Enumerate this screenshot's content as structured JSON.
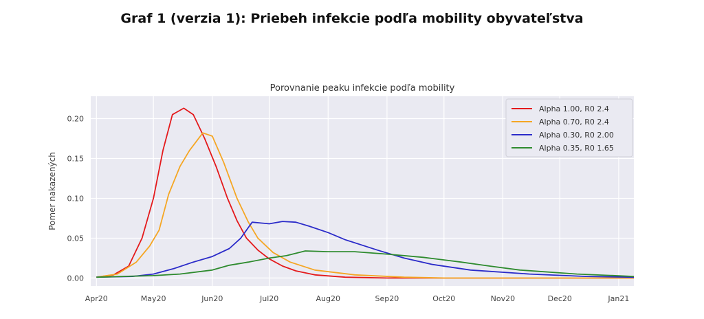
{
  "page": {
    "title": "Graf 1 (verzia 1): Priebeh infekcie podľa mobility obyvateľstva"
  },
  "chart_data": {
    "type": "line",
    "title": "Porovnanie peaku infekcie podľa mobility",
    "xlabel": "",
    "ylabel": "Pomer nakazených",
    "xlim": [
      "2020-03-29",
      "2021-01-09"
    ],
    "ylim": [
      -0.01,
      0.228
    ],
    "grid": true,
    "legend": "top-right",
    "xticks": [
      {
        "date": "2020-04-01",
        "label": "Apr20"
      },
      {
        "date": "2020-05-01",
        "label": "May20"
      },
      {
        "date": "2020-06-01",
        "label": "Jun20"
      },
      {
        "date": "2020-07-01",
        "label": "Jul20"
      },
      {
        "date": "2020-08-01",
        "label": "Aug20"
      },
      {
        "date": "2020-09-01",
        "label": "Sep20"
      },
      {
        "date": "2020-10-01",
        "label": "Oct20"
      },
      {
        "date": "2020-11-01",
        "label": "Nov20"
      },
      {
        "date": "2020-12-01",
        "label": "Dec20"
      },
      {
        "date": "2021-01-01",
        "label": "Jan21"
      }
    ],
    "yticks": [
      {
        "value": 0.0,
        "label": "0.00"
      },
      {
        "value": 0.05,
        "label": "0.05"
      },
      {
        "value": 0.1,
        "label": "0.10"
      },
      {
        "value": 0.15,
        "label": "0.15"
      },
      {
        "value": 0.2,
        "label": "0.20"
      }
    ],
    "series": [
      {
        "name": "Alpha 1.00, R0 2.4",
        "color": "#e41a1c",
        "points": [
          [
            "2020-04-01",
            0.001
          ],
          [
            "2020-04-10",
            0.004
          ],
          [
            "2020-04-18",
            0.015
          ],
          [
            "2020-04-25",
            0.05
          ],
          [
            "2020-05-01",
            0.1
          ],
          [
            "2020-05-06",
            0.16
          ],
          [
            "2020-05-11",
            0.205
          ],
          [
            "2020-05-17",
            0.213
          ],
          [
            "2020-05-22",
            0.205
          ],
          [
            "2020-05-28",
            0.175
          ],
          [
            "2020-06-03",
            0.14
          ],
          [
            "2020-06-09",
            0.1
          ],
          [
            "2020-06-14",
            0.072
          ],
          [
            "2020-06-19",
            0.05
          ],
          [
            "2020-06-25",
            0.035
          ],
          [
            "2020-07-01",
            0.024
          ],
          [
            "2020-07-08",
            0.015
          ],
          [
            "2020-07-15",
            0.009
          ],
          [
            "2020-07-25",
            0.004
          ],
          [
            "2020-08-10",
            0.001
          ],
          [
            "2020-09-01",
            0.0
          ],
          [
            "2021-01-09",
            0.0
          ]
        ]
      },
      {
        "name": "Alpha 0.70, R0 2.4",
        "color": "#f5a623",
        "points": [
          [
            "2020-04-01",
            0.001
          ],
          [
            "2020-04-12",
            0.005
          ],
          [
            "2020-04-22",
            0.02
          ],
          [
            "2020-04-29",
            0.04
          ],
          [
            "2020-05-04",
            0.06
          ],
          [
            "2020-05-09",
            0.105
          ],
          [
            "2020-05-15",
            0.14
          ],
          [
            "2020-05-20",
            0.16
          ],
          [
            "2020-05-27",
            0.182
          ],
          [
            "2020-06-01",
            0.178
          ],
          [
            "2020-06-07",
            0.145
          ],
          [
            "2020-06-14",
            0.1
          ],
          [
            "2020-06-20",
            0.07
          ],
          [
            "2020-06-25",
            0.05
          ],
          [
            "2020-07-03",
            0.032
          ],
          [
            "2020-07-12",
            0.02
          ],
          [
            "2020-07-25",
            0.01
          ],
          [
            "2020-08-15",
            0.004
          ],
          [
            "2020-09-10",
            0.001
          ],
          [
            "2020-10-01",
            0.0
          ],
          [
            "2021-01-09",
            0.0
          ]
        ]
      },
      {
        "name": "Alpha 0.30, R0 2.00",
        "color": "#2b2bc9",
        "points": [
          [
            "2020-04-01",
            0.001
          ],
          [
            "2020-04-20",
            0.002
          ],
          [
            "2020-05-01",
            0.005
          ],
          [
            "2020-05-12",
            0.012
          ],
          [
            "2020-05-22",
            0.02
          ],
          [
            "2020-06-01",
            0.027
          ],
          [
            "2020-06-10",
            0.037
          ],
          [
            "2020-06-16",
            0.05
          ],
          [
            "2020-06-22",
            0.07
          ],
          [
            "2020-07-01",
            0.068
          ],
          [
            "2020-07-08",
            0.071
          ],
          [
            "2020-07-15",
            0.07
          ],
          [
            "2020-07-22",
            0.065
          ],
          [
            "2020-08-01",
            0.057
          ],
          [
            "2020-08-10",
            0.048
          ],
          [
            "2020-08-27",
            0.035
          ],
          [
            "2020-09-10",
            0.025
          ],
          [
            "2020-09-25",
            0.017
          ],
          [
            "2020-10-15",
            0.01
          ],
          [
            "2020-11-15",
            0.005
          ],
          [
            "2020-12-15",
            0.002
          ],
          [
            "2021-01-09",
            0.001
          ]
        ]
      },
      {
        "name": "Alpha 0.35, R0 1.65",
        "color": "#2e8b2e",
        "points": [
          [
            "2020-04-01",
            0.001
          ],
          [
            "2020-05-01",
            0.003
          ],
          [
            "2020-05-15",
            0.005
          ],
          [
            "2020-06-01",
            0.01
          ],
          [
            "2020-06-10",
            0.016
          ],
          [
            "2020-06-20",
            0.02
          ],
          [
            "2020-07-01",
            0.025
          ],
          [
            "2020-07-10",
            0.028
          ],
          [
            "2020-07-20",
            0.034
          ],
          [
            "2020-08-01",
            0.033
          ],
          [
            "2020-08-15",
            0.033
          ],
          [
            "2020-09-01",
            0.03
          ],
          [
            "2020-09-20",
            0.026
          ],
          [
            "2020-10-10",
            0.02
          ],
          [
            "2020-10-25",
            0.015
          ],
          [
            "2020-11-10",
            0.01
          ],
          [
            "2020-12-10",
            0.005
          ],
          [
            "2021-01-09",
            0.002
          ]
        ]
      }
    ]
  }
}
